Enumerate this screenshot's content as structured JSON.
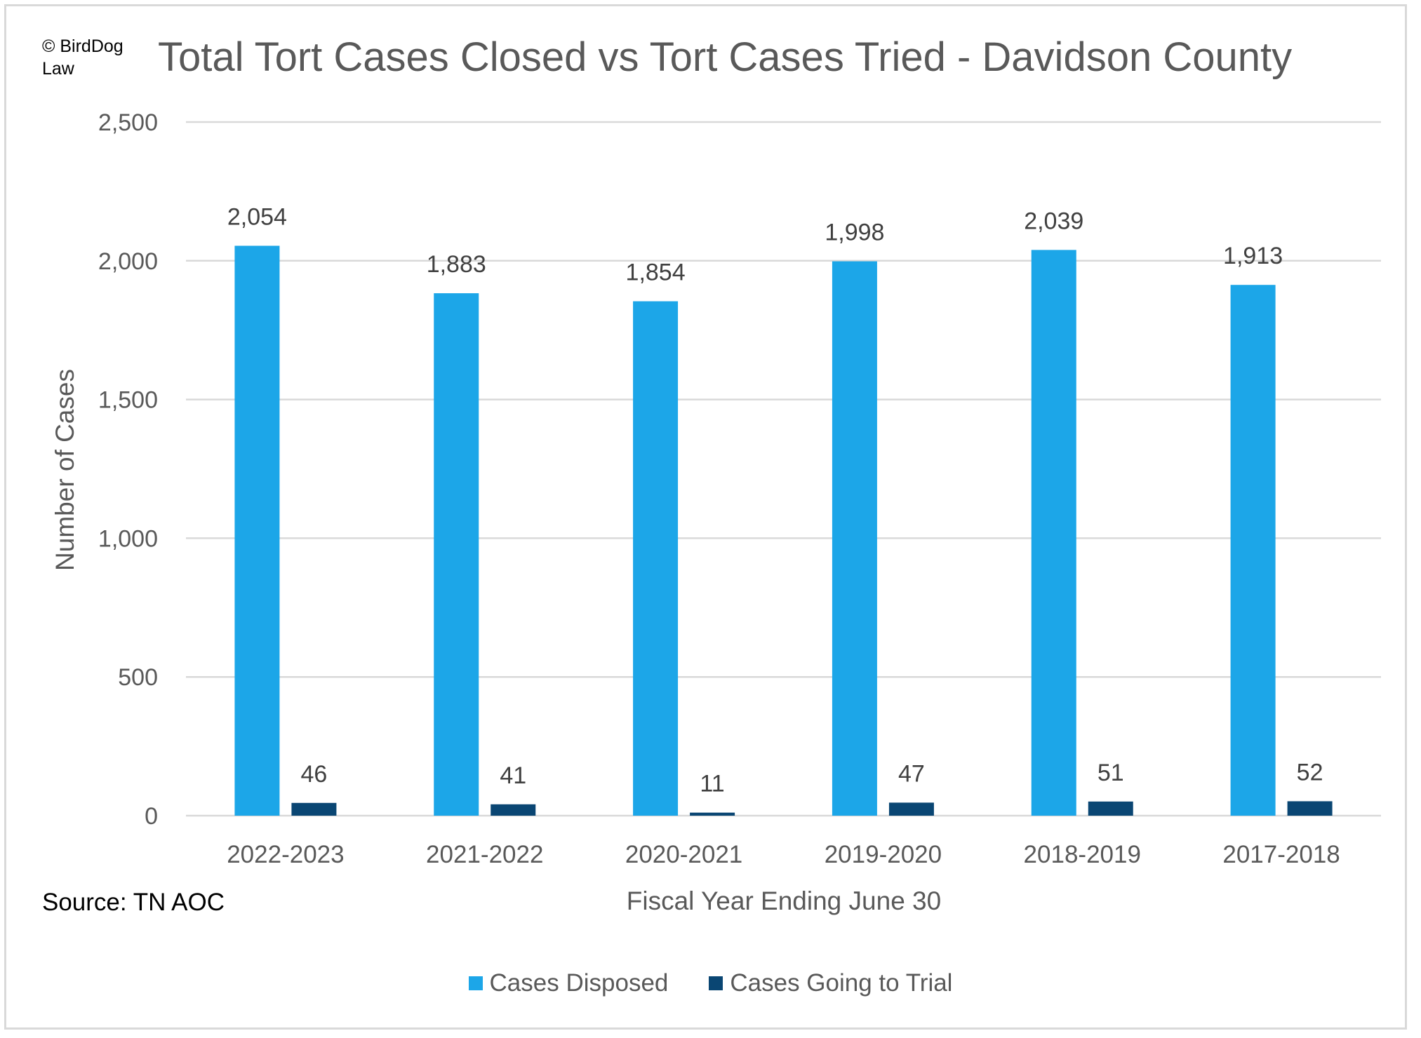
{
  "copyright": "© BirdDog\nLaw",
  "source": "Source: TN AOC",
  "colors": {
    "disposed": "#1ca6e8",
    "trial": "#0a4673",
    "grid": "#d9d9d9",
    "text": "#595959"
  },
  "chart_data": {
    "type": "bar",
    "title": "Total Tort Cases Closed vs Tort Cases Tried - Davidson County",
    "xlabel": "Fiscal Year Ending June 30",
    "ylabel": "Number of Cases",
    "categories": [
      "2022-2023",
      "2021-2022",
      "2020-2021",
      "2019-2020",
      "2018-2019",
      "2017-2018"
    ],
    "series": [
      {
        "name": "Cases Disposed",
        "values": [
          2054,
          1883,
          1854,
          1998,
          2039,
          1913
        ],
        "labels": [
          "2,054",
          "1,883",
          "1,854",
          "1,998",
          "2,039",
          "1,913"
        ]
      },
      {
        "name": "Cases Going to Trial",
        "values": [
          46,
          41,
          11,
          47,
          51,
          52
        ],
        "labels": [
          "46",
          "41",
          "11",
          "47",
          "51",
          "52"
        ]
      }
    ],
    "ylim": [
      0,
      2500
    ],
    "yticks": [
      0,
      500,
      1000,
      1500,
      2000,
      2500
    ],
    "ytick_labels": [
      "0",
      "500",
      "1,000",
      "1,500",
      "2,000",
      "2,500"
    ],
    "grid": true,
    "legend": "bottom"
  }
}
